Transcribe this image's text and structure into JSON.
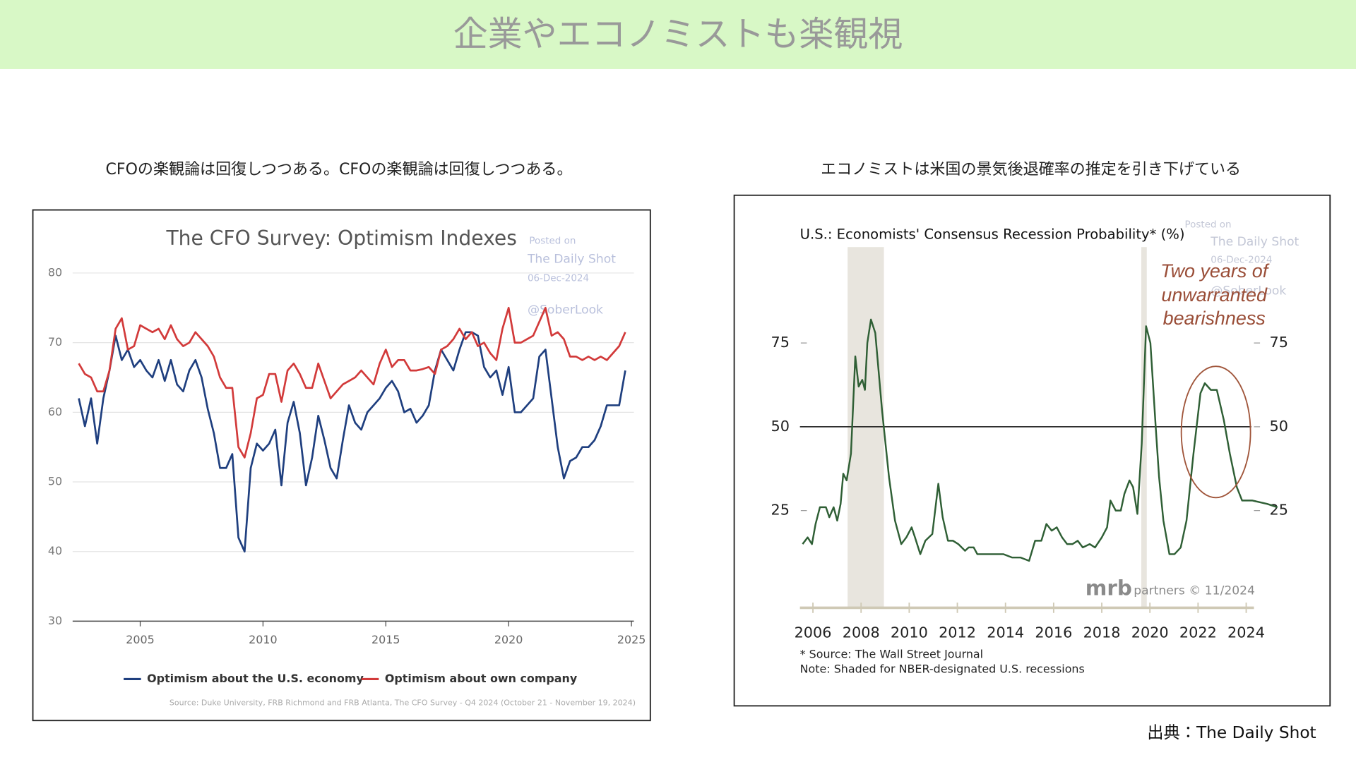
{
  "page": {
    "title": "企業やエコノミストも楽観視",
    "captions": [
      "CFOの楽観論は回復しつつある。CFOの楽観論は回復しつつある。",
      "エコノミストは米国の景気後退確率の推定を引き下げている"
    ],
    "source": "出典：The Daily Shot"
  },
  "chart_data": [
    {
      "type": "line",
      "title": "The CFO Survey: Optimism Indexes",
      "watermark": [
        "Posted on",
        "The Daily Shot",
        "06-Dec-2024",
        "@SoberLook"
      ],
      "x": [
        2002.5,
        2002.75,
        2003,
        2003.25,
        2003.5,
        2003.75,
        2004,
        2004.25,
        2004.5,
        2004.75,
        2005,
        2005.25,
        2005.5,
        2005.75,
        2006,
        2006.25,
        2006.5,
        2006.75,
        2007,
        2007.25,
        2007.5,
        2007.75,
        2008,
        2008.25,
        2008.5,
        2008.75,
        2009,
        2009.25,
        2009.5,
        2009.75,
        2010,
        2010.25,
        2010.5,
        2010.75,
        2011,
        2011.25,
        2011.5,
        2011.75,
        2012,
        2012.25,
        2012.5,
        2012.75,
        2013,
        2013.25,
        2013.5,
        2013.75,
        2014,
        2014.25,
        2014.5,
        2014.75,
        2015,
        2015.25,
        2015.5,
        2015.75,
        2016,
        2016.25,
        2016.5,
        2016.75,
        2017,
        2017.25,
        2017.5,
        2017.75,
        2018,
        2018.25,
        2018.5,
        2018.75,
        2019,
        2019.25,
        2019.5,
        2019.75,
        2020,
        2020.25,
        2020.5,
        2020.75,
        2021,
        2021.25,
        2021.5,
        2021.75,
        2022,
        2022.25,
        2022.5,
        2022.75,
        2023,
        2023.25,
        2023.5,
        2023.75,
        2024,
        2024.25,
        2024.5,
        2024.75
      ],
      "series": [
        {
          "name": "Optimism about the U.S. economy",
          "color": "#1f3f7f",
          "values": [
            62,
            58,
            62,
            55.5,
            62,
            66,
            71,
            67.5,
            69,
            66.5,
            67.5,
            66,
            65,
            67.5,
            64.5,
            67.5,
            64,
            63,
            66,
            67.5,
            65,
            60.5,
            57,
            52,
            52,
            54,
            42,
            40,
            52,
            55.5,
            54.5,
            55.5,
            57.5,
            49.5,
            58.5,
            61.5,
            57,
            49.5,
            53.5,
            59.5,
            56,
            52,
            50.5,
            56,
            61,
            58.5,
            57.5,
            60,
            61,
            62,
            63.5,
            64.5,
            63,
            60,
            60.5,
            58.5,
            59.5,
            61,
            66,
            69,
            67.5,
            66,
            69,
            71.5,
            71.5,
            71,
            66.5,
            65,
            66,
            62.5,
            66.5,
            60,
            60,
            61,
            62,
            68,
            69,
            62,
            55,
            50.5,
            53,
            53.5,
            55,
            55,
            56,
            58,
            61,
            61,
            61,
            66
          ]
        },
        {
          "name": "Optimism about own company",
          "color": "#d23a3a",
          "values": [
            67,
            65.5,
            65,
            63,
            63,
            66,
            72,
            73.5,
            69,
            69.5,
            72.5,
            72,
            71.5,
            72,
            70.5,
            72.5,
            70.5,
            69.5,
            70,
            71.5,
            70.5,
            69.5,
            68,
            65,
            63.5,
            63.5,
            55,
            53.5,
            57,
            62,
            62.5,
            65.5,
            65.5,
            61.5,
            66,
            67,
            65.5,
            63.5,
            63.5,
            67,
            64.5,
            62,
            63,
            64,
            64.5,
            65,
            66,
            65,
            64,
            67,
            69,
            66.5,
            67.5,
            67.5,
            66,
            66,
            66.2,
            66.5,
            65.5,
            69,
            69.5,
            70.5,
            72,
            70.5,
            71.5,
            69.5,
            70,
            68.5,
            67.5,
            72,
            75,
            70,
            70,
            70.5,
            71,
            73,
            75,
            71,
            71.5,
            70.5,
            68,
            68,
            67.5,
            68,
            67.5,
            68,
            67.5,
            68.5,
            69.5,
            71.5
          ]
        }
      ],
      "xlim": [
        2002.25,
        2025.1
      ],
      "xticks": [
        2005,
        2010,
        2015,
        2020,
        2025
      ],
      "ylim": [
        30,
        80
      ],
      "yticks": [
        30,
        40,
        50,
        60,
        70,
        80
      ],
      "grid": true,
      "legend": "bottom",
      "source": "Source: Duke University, FRB Richmond and FRB Atlanta, The CFO Survey - Q4 2024 (October 21 - November 19, 2024)"
    },
    {
      "type": "line",
      "title": "U.S.: Economists' Consensus Recession Probability* (%)",
      "watermark": [
        "Posted on",
        "The Daily Shot",
        "06-Dec-2024",
        "@SoberLook"
      ],
      "x": [
        2005.57,
        2005.78,
        2005.96,
        2006.11,
        2006.29,
        2006.54,
        2006.68,
        2006.86,
        2007.01,
        2007.15,
        2007.26,
        2007.4,
        2007.58,
        2007.76,
        2007.9,
        2008.05,
        2008.16,
        2008.26,
        2008.41,
        2008.59,
        2008.87,
        2009.16,
        2009.41,
        2009.67,
        2009.88,
        2010.1,
        2010.24,
        2010.46,
        2010.67,
        2010.96,
        2011.21,
        2011.39,
        2011.61,
        2011.82,
        2012.04,
        2012.32,
        2012.47,
        2012.68,
        2012.83,
        2013.19,
        2013.55,
        2013.91,
        2014.27,
        2014.62,
        2014.98,
        2015.23,
        2015.49,
        2015.7,
        2015.92,
        2016.13,
        2016.35,
        2016.56,
        2016.78,
        2017,
        2017.21,
        2017.5,
        2017.72,
        2018,
        2018.22,
        2018.36,
        2018.58,
        2018.79,
        2018.94,
        2019.15,
        2019.3,
        2019.48,
        2019.66,
        2019.84,
        2020.02,
        2020.24,
        2020.38,
        2020.56,
        2020.81,
        2021.02,
        2021.28,
        2021.52,
        2021.81,
        2022.1,
        2022.28,
        2022.53,
        2022.78,
        2023.07,
        2023.32,
        2023.61,
        2023.83,
        2024.26,
        2024.87,
        2025.3
      ],
      "series": [
        {
          "color": "#2f5f35",
          "values": [
            15,
            17,
            15,
            21,
            26,
            26,
            23,
            26,
            22,
            27,
            36,
            34,
            42,
            71,
            62,
            64,
            61,
            75,
            82,
            78,
            55,
            35,
            22,
            15,
            17,
            20,
            17,
            12,
            16,
            18,
            33,
            23,
            16,
            16,
            15,
            13,
            14,
            14,
            12,
            12,
            12,
            12,
            11,
            11,
            10,
            16,
            16,
            21,
            19,
            20,
            17,
            15,
            15,
            16,
            14,
            15,
            14,
            17,
            20,
            28,
            25,
            25,
            30,
            34,
            32,
            24,
            45,
            80,
            75,
            50,
            35,
            22,
            12,
            12,
            14,
            22,
            42,
            60,
            63,
            61,
            61,
            52,
            42,
            32,
            28,
            28,
            27,
            26
          ]
        }
      ],
      "xlim": [
        2005.46,
        2025.4
      ],
      "xticks": [
        2006,
        2008,
        2010,
        2012,
        2014,
        2016,
        2018,
        2020,
        2022,
        2024
      ],
      "ylim": [
        -4,
        100
      ],
      "yticks": [
        25,
        50,
        75
      ],
      "mirror_yticks": true,
      "reference_line": 50,
      "shaded": [
        [
          2007.44,
          2008.95
        ],
        [
          2019.64,
          2019.87
        ]
      ],
      "annotation": [
        "Two years of",
        "unwarranted",
        "bearishness"
      ],
      "logo": "mrb",
      "credit": "partners © 11/2024",
      "notes": [
        "* Source: The Wall Street Journal",
        "Note: Shaded for NBER-designated U.S. recessions"
      ]
    }
  ]
}
